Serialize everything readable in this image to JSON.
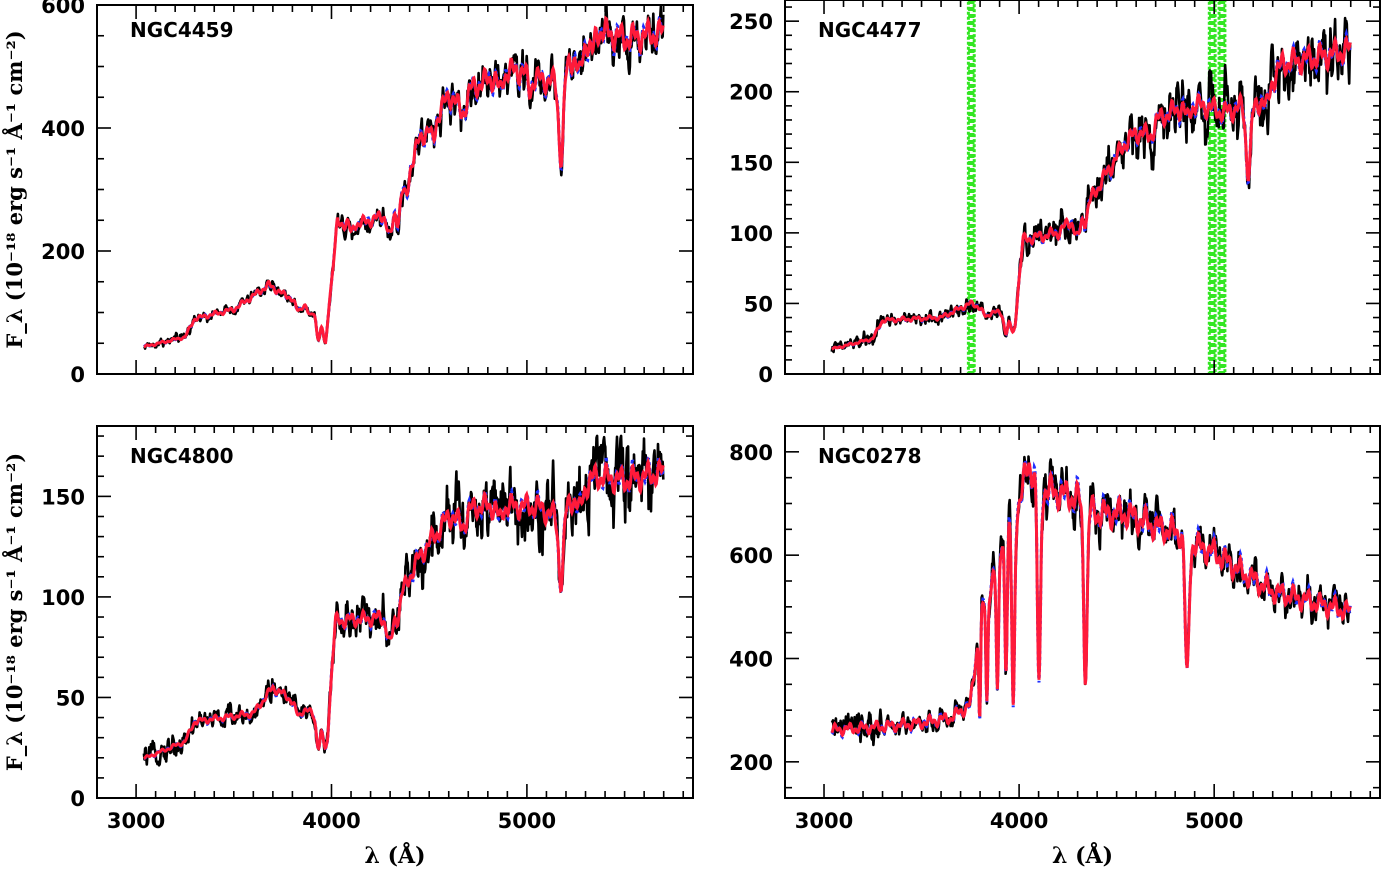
{
  "chart_data": [
    {
      "type": "line",
      "panel_label": "NGC4459",
      "xlabel": "",
      "ylabel": "F_λ (10⁻¹⁸ erg s⁻¹ Å⁻¹ cm⁻²)",
      "xlim": [
        2800,
        5850
      ],
      "ylim": [
        0,
        600
      ],
      "xticks": [
        3000,
        4000,
        5000
      ],
      "yticks": [
        0,
        200,
        400,
        600
      ],
      "show_xtick_labels": false,
      "continuum": [
        [
          3050,
          45
        ],
        [
          3250,
          60
        ],
        [
          3300,
          90
        ],
        [
          3500,
          105
        ],
        [
          3680,
          145
        ],
        [
          3750,
          130
        ],
        [
          3900,
          110
        ],
        [
          3970,
          80
        ],
        [
          4000,
          150
        ],
        [
          4030,
          245
        ],
        [
          4150,
          245
        ],
        [
          4250,
          255
        ],
        [
          4350,
          290
        ],
        [
          4450,
          380
        ],
        [
          4600,
          450
        ],
        [
          4750,
          470
        ],
        [
          4850,
          485
        ],
        [
          4950,
          495
        ],
        [
          5050,
          480
        ],
        [
          5150,
          475
        ],
        [
          5250,
          520
        ],
        [
          5350,
          560
        ],
        [
          5500,
          545
        ],
        [
          5700,
          555
        ]
      ],
      "absorption": [
        [
          3830,
          0.14,
          15
        ],
        [
          3890,
          0.16,
          12
        ],
        [
          3933,
          0.4,
          10
        ],
        [
          3968,
          0.38,
          10
        ],
        [
          4102,
          0.07,
          8
        ],
        [
          4300,
          0.18,
          15
        ],
        [
          4340,
          0.12,
          10
        ],
        [
          4383,
          0.1,
          10
        ],
        [
          4520,
          0.08,
          12
        ],
        [
          4668,
          0.08,
          20
        ],
        [
          4861,
          0.06,
          10
        ],
        [
          5015,
          0.05,
          10
        ],
        [
          5175,
          0.28,
          12
        ],
        [
          5270,
          0.08,
          12
        ],
        [
          5335,
          0.06,
          12
        ]
      ],
      "noise": 0.055,
      "shaded_regions": []
    },
    {
      "type": "line",
      "panel_label": "NGC4477",
      "xlabel": "",
      "ylabel": "",
      "xlim": [
        2800,
        5850
      ],
      "ylim": [
        0,
        265
      ],
      "xticks": [
        3000,
        4000,
        5000
      ],
      "yticks": [
        0,
        50,
        100,
        150,
        200,
        250
      ],
      "show_xtick_labels": false,
      "continuum": [
        [
          3050,
          18
        ],
        [
          3250,
          25
        ],
        [
          3300,
          38
        ],
        [
          3600,
          40
        ],
        [
          3750,
          50
        ],
        [
          3850,
          45
        ],
        [
          3980,
          40
        ],
        [
          4020,
          95
        ],
        [
          4200,
          100
        ],
        [
          4350,
          120
        ],
        [
          4550,
          165
        ],
        [
          4700,
          180
        ],
        [
          4850,
          190
        ],
        [
          4950,
          190
        ],
        [
          5050,
          185
        ],
        [
          5150,
          190
        ],
        [
          5220,
          190
        ],
        [
          5350,
          220
        ],
        [
          5550,
          225
        ],
        [
          5700,
          230
        ]
      ],
      "absorption": [
        [
          3830,
          0.12,
          15
        ],
        [
          3933,
          0.3,
          10
        ],
        [
          3968,
          0.28,
          10
        ],
        [
          4300,
          0.15,
          15
        ],
        [
          4340,
          0.08,
          10
        ],
        [
          4668,
          0.05,
          20
        ],
        [
          4861,
          0.05,
          10
        ],
        [
          5175,
          0.25,
          12
        ],
        [
          5270,
          0.06,
          12
        ]
      ],
      "noise": 0.09,
      "shaded_regions": [
        [
          3740,
          3770
        ],
        [
          4975,
          5005
        ],
        [
          5025,
          5055
        ]
      ]
    },
    {
      "type": "line",
      "panel_label": "NGC4800",
      "xlabel": "λ (Å)",
      "ylabel": "F_λ (10⁻¹⁸ erg s⁻¹ Å⁻¹ cm⁻²)",
      "xlim": [
        2800,
        5850
      ],
      "ylim": [
        0,
        185
      ],
      "xticks": [
        3000,
        4000,
        5000
      ],
      "yticks": [
        0,
        50,
        100,
        150
      ],
      "show_xtick_labels": true,
      "continuum": [
        [
          3050,
          20
        ],
        [
          3250,
          28
        ],
        [
          3300,
          38
        ],
        [
          3600,
          42
        ],
        [
          3700,
          55
        ],
        [
          3900,
          42
        ],
        [
          3980,
          35
        ],
        [
          4020,
          88
        ],
        [
          4300,
          90
        ],
        [
          4450,
          120
        ],
        [
          4600,
          140
        ],
        [
          4750,
          145
        ],
        [
          4900,
          145
        ],
        [
          5050,
          145
        ],
        [
          5150,
          140
        ],
        [
          5250,
          150
        ],
        [
          5350,
          160
        ],
        [
          5500,
          158
        ],
        [
          5700,
          162
        ]
      ],
      "absorption": [
        [
          3830,
          0.12,
          15
        ],
        [
          3933,
          0.35,
          10
        ],
        [
          3968,
          0.33,
          10
        ],
        [
          4300,
          0.15,
          15
        ],
        [
          4340,
          0.08,
          10
        ],
        [
          4668,
          0.05,
          20
        ],
        [
          4861,
          0.05,
          10
        ],
        [
          5175,
          0.25,
          12
        ],
        [
          5270,
          0.06,
          12
        ]
      ],
      "noise": 0.1,
      "shaded_regions": []
    },
    {
      "type": "line",
      "panel_label": "NGC0278",
      "xlabel": "λ (Å)",
      "ylabel": "",
      "xlim": [
        2800,
        5850
      ],
      "ylim": [
        130,
        850
      ],
      "xticks": [
        3000,
        4000,
        5000
      ],
      "yticks": [
        200,
        400,
        600,
        800
      ],
      "show_xtick_labels": true,
      "continuum": [
        [
          3050,
          262
        ],
        [
          3300,
          268
        ],
        [
          3500,
          275
        ],
        [
          3650,
          285
        ],
        [
          3750,
          310
        ],
        [
          3800,
          470
        ],
        [
          3900,
          610
        ],
        [
          4000,
          700
        ],
        [
          4050,
          780
        ],
        [
          4100,
          730
        ],
        [
          4200,
          720
        ],
        [
          4300,
          710
        ],
        [
          4400,
          680
        ],
        [
          4550,
          680
        ],
        [
          4700,
          655
        ],
        [
          4850,
          640
        ],
        [
          4900,
          620
        ],
        [
          5000,
          605
        ],
        [
          5150,
          565
        ],
        [
          5300,
          530
        ],
        [
          5500,
          510
        ],
        [
          5700,
          490
        ]
      ],
      "absorption": [
        [
          3798,
          0.38,
          4
        ],
        [
          3835,
          0.4,
          5
        ],
        [
          3889,
          0.45,
          6
        ],
        [
          3933,
          0.4,
          6
        ],
        [
          3970,
          0.55,
          7
        ],
        [
          4102,
          0.52,
          8
        ],
        [
          4340,
          0.48,
          9
        ],
        [
          4861,
          0.42,
          10
        ]
      ],
      "noise": 0.05,
      "shaded_regions": []
    }
  ],
  "colors": {
    "observed": "#000000",
    "model_blue": "#1f2eff",
    "model_red": "#ff1a3a",
    "mask_green": "#33e622"
  }
}
